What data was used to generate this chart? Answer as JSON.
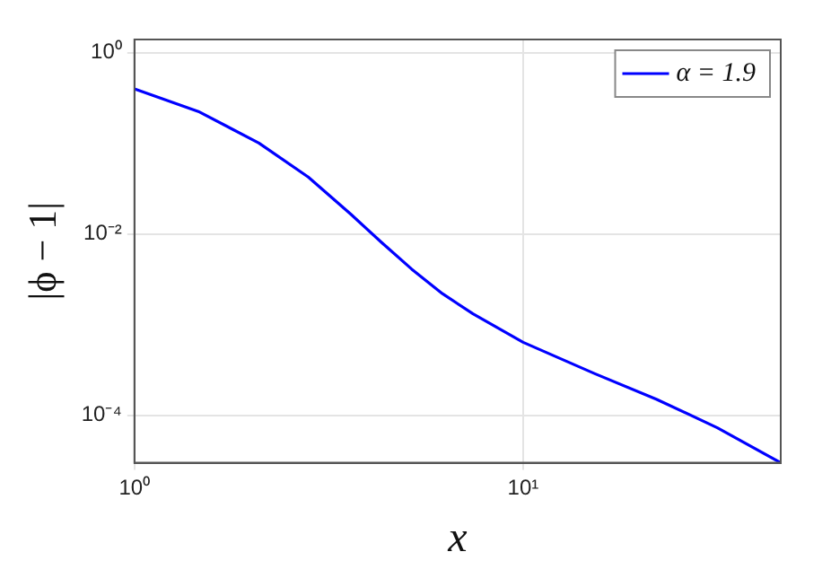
{
  "chart_data": {
    "type": "line",
    "xlabel": "x",
    "ylabel": "|ϕ − 1|",
    "log": "xy",
    "grid": true,
    "legend": "top right",
    "marker": "none",
    "line_style": "solid",
    "xlim": [
      1,
      46
    ],
    "ylim": [
      3e-05,
      1.4
    ],
    "xticks": [
      {
        "value": 1,
        "label": "10⁰"
      },
      {
        "value": 10,
        "label": "10¹"
      }
    ],
    "yticks": [
      {
        "value": 0.0001,
        "label": "10⁻⁴"
      },
      {
        "value": 0.01,
        "label": "10⁻²"
      },
      {
        "value": 1,
        "label": "10⁰"
      }
    ],
    "x": [
      1,
      1.46,
      2.09,
      2.8,
      3.6,
      4.32,
      5.17,
      6.2,
      7.43,
      10,
      15.3,
      22,
      31.6,
      46
    ],
    "series": [
      {
        "name": "α = 1.9",
        "color": "#0000ff",
        "values": [
          0.4,
          0.225,
          0.101,
          0.0425,
          0.0166,
          0.0081,
          0.0041,
          0.0022,
          0.00132,
          0.00064,
          0.000288,
          0.000151,
          7.3e-05,
          3e-05
        ]
      }
    ]
  }
}
